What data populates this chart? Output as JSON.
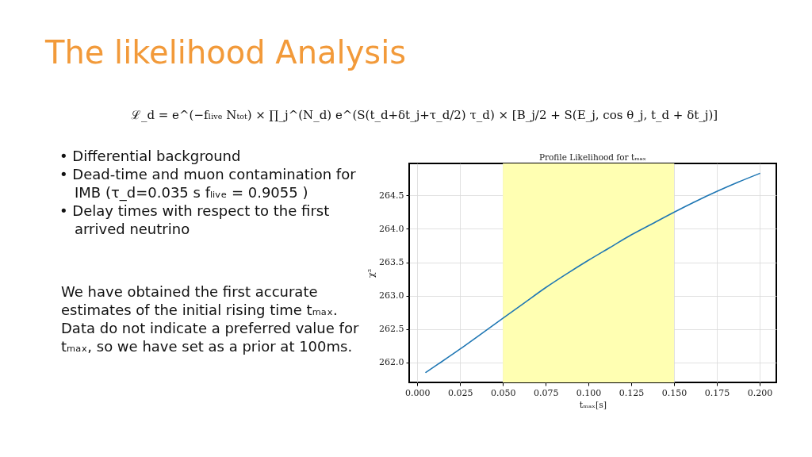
{
  "chart_data": {
    "type": "line",
    "title": "Profile Likelihood for tₘₐₓ",
    "xlabel": "tₘₐₓ[s]",
    "ylabel": "χ²",
    "annotations": [
      "The likelihood Analysis",
      "ℒ_d = e^(−fₗᵢᵥₑ Nₜₒₜ) × ∏_j^(N_d) e^(S(t_d+δt_j+τ_d/2) τ_d) × [B_j/2 + S(E_j, cos θ_j, t_d + δt_j)]",
      "• Differential background",
      "• Dead-time and muon contamination for\nIMB (τ_d=0.035 s fₗᵢᵥₑ = 0.9055 )",
      "• Delay times with respect to the first\narrived neutrino",
      "We have obtained the first accurate\nestimates of the initial rising time tₘₐₓ.\nData do not indicate a preferred value for\ntₘₐₓ, so we have set as a prior at 100ms."
    ],
    "x": [
      0.005,
      0.0125,
      0.025,
      0.0375,
      0.05,
      0.0625,
      0.075,
      0.0875,
      0.1,
      0.1125,
      0.125,
      0.1375,
      0.15,
      0.1625,
      0.175,
      0.1875,
      0.2
    ],
    "series": [
      {
        "color": "#1f77b4",
        "values": [
          261.85,
          261.98,
          262.2,
          262.43,
          262.66,
          262.89,
          263.12,
          263.33,
          263.53,
          263.72,
          263.91,
          264.08,
          264.25,
          264.41,
          264.56,
          264.7,
          264.83
        ]
      }
    ],
    "xlim": [
      -0.00475,
      0.20975
    ],
    "ylim": [
      261.7,
      264.98
    ],
    "xticks": [
      {
        "value": 0,
        "label": "0.000"
      },
      {
        "value": 0.025,
        "label": "0.025"
      },
      {
        "value": 0.05,
        "label": "0.050"
      },
      {
        "value": 0.075,
        "label": "0.075"
      },
      {
        "value": 0.1,
        "label": "0.100"
      },
      {
        "value": 0.125,
        "label": "0.125"
      },
      {
        "value": 0.15,
        "label": "0.150"
      },
      {
        "value": 0.175,
        "label": "0.175"
      },
      {
        "value": 0.2,
        "label": "0.200"
      }
    ],
    "yticks": [
      {
        "value": 262,
        "label": "262.0"
      },
      262.5,
      {
        "value": 263,
        "label": "263.0"
      },
      263.5,
      {
        "value": 264,
        "label": "264.0"
      },
      264.5
    ],
    "bands": [
      {
        "axis": "x",
        "from": 0.05,
        "to": 0.15,
        "color": "#ffffb2"
      }
    ],
    "grid": true,
    "line_style": "solid"
  }
}
